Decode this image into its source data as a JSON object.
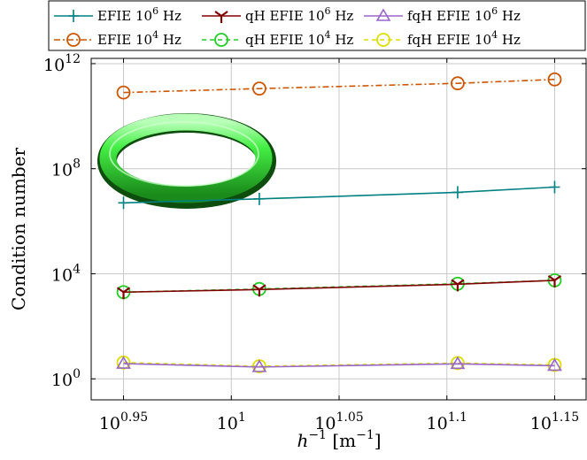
{
  "chart_data": {
    "type": "line",
    "xscale": "log",
    "yscale": "log",
    "xlim": [
      0.935,
      1.165
    ],
    "ylim": [
      -0.8,
      12.2
    ],
    "xlabel": {
      "base": "h",
      "base_sup": "−1",
      "unit": "m",
      "unit_sup": "−1"
    },
    "ylabel": "Condition number",
    "xticks": [
      {
        "value": 0.95,
        "base": "10",
        "exp": "0.95"
      },
      {
        "value": 1.0,
        "base": "10",
        "exp": "1"
      },
      {
        "value": 1.05,
        "base": "10",
        "exp": "1.05"
      },
      {
        "value": 1.1,
        "base": "10",
        "exp": "1.1"
      },
      {
        "value": 1.15,
        "base": "10",
        "exp": "1.15"
      }
    ],
    "yticks": [
      {
        "value": 0,
        "base": "10",
        "exp": "0"
      },
      {
        "value": 4,
        "base": "10",
        "exp": "4"
      },
      {
        "value": 8,
        "base": "10",
        "exp": "8"
      },
      {
        "value": 12,
        "base": "10",
        "exp": "12"
      }
    ],
    "grid": true,
    "legend_position": "top",
    "series": [
      {
        "name": "EFIE 10^6 Hz",
        "leg_pre": "EFIE 10",
        "leg_sup": "6",
        "leg_post": " Hz",
        "color": "#008080",
        "dash": "",
        "marker": "plus",
        "x": [
          0.95,
          1.013,
          1.105,
          1.15
        ],
        "y": [
          6.7,
          6.85,
          7.1,
          7.3
        ]
      },
      {
        "name": "qH EFIE 10^6 Hz",
        "leg_pre": "qH EFIE 10",
        "leg_sup": "6",
        "leg_post": " Hz",
        "color": "#800000",
        "dash": "",
        "marker": "tri",
        "x": [
          0.95,
          1.013,
          1.105,
          1.15
        ],
        "y": [
          3.3,
          3.4,
          3.6,
          3.75
        ]
      },
      {
        "name": "fqH EFIE 10^6 Hz",
        "leg_pre": "fqH EFIE 10",
        "leg_sup": "6",
        "leg_post": " Hz",
        "color": "#9966cc",
        "dash": "",
        "marker": "triangle",
        "x": [
          0.95,
          1.013,
          1.105,
          1.15
        ],
        "y": [
          0.58,
          0.45,
          0.57,
          0.5
        ]
      },
      {
        "name": "EFIE 10^4 Hz",
        "leg_pre": "EFIE 10",
        "leg_sup": "4",
        "leg_post": " Hz",
        "color": "#cc5500",
        "dash": "7,3,2,3",
        "marker": "circle",
        "x": [
          0.95,
          1.013,
          1.105,
          1.15
        ],
        "y": [
          10.9,
          11.05,
          11.25,
          11.4
        ]
      },
      {
        "name": "qH EFIE 10^4 Hz",
        "leg_pre": "qH EFIE 10",
        "leg_sup": "4",
        "leg_post": " Hz",
        "color": "#22cc22",
        "dash": "5,4",
        "marker": "circle",
        "x": [
          0.95,
          1.013,
          1.105,
          1.15
        ],
        "y": [
          3.3,
          3.42,
          3.62,
          3.75
        ]
      },
      {
        "name": "fqH EFIE 10^4 Hz",
        "leg_pre": "fqH EFIE 10",
        "leg_sup": "4",
        "leg_post": " Hz",
        "color": "#dddd00",
        "dash": "5,4",
        "marker": "circle",
        "x": [
          0.95,
          1.013,
          1.105,
          1.15
        ],
        "y": [
          0.62,
          0.48,
          0.6,
          0.53
        ]
      }
    ],
    "inset": {
      "shape": "torus",
      "color": "#33ee33"
    }
  }
}
